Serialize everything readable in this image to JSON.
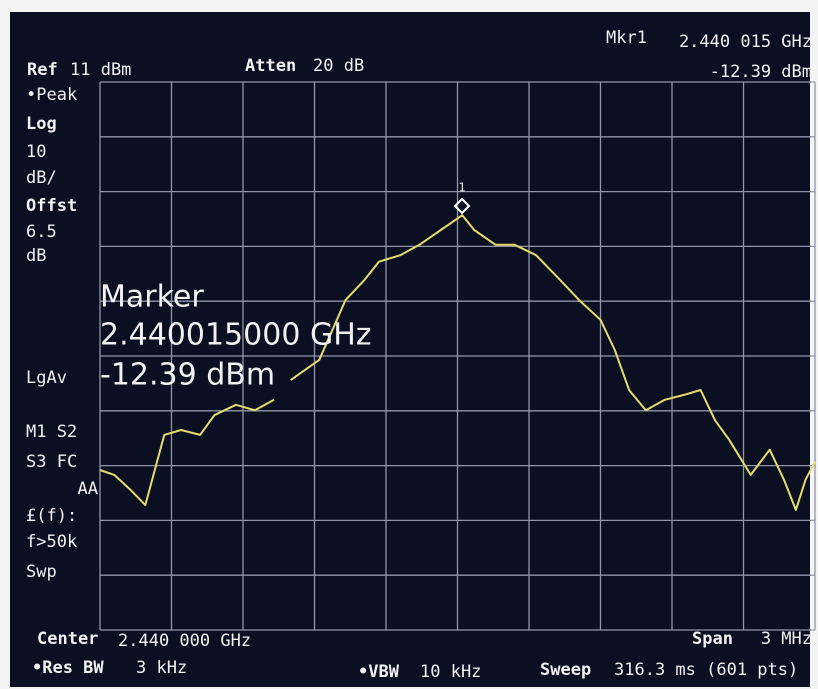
{
  "screen": {
    "mkr_title": "Mkr1",
    "mkr_freq": "2.440 015 GHz",
    "mkr_level": "-12.39 dBm",
    "ref": "Ref",
    "ref_value": "11 dBm",
    "atten": "Atten",
    "atten_value": "20 dB",
    "side": [
      "•Peak",
      "Log",
      "10",
      "dB/",
      "Offst",
      "6.5",
      "dB",
      "LgAv",
      "M1 S2",
      "S3 FC",
      "AA",
      "£(f):",
      "f>50k",
      "Swp"
    ],
    "marker_box": [
      "Marker",
      "2.440015000 GHz",
      "-12.39 dBm"
    ],
    "marker_number": "1",
    "center": "Center",
    "center_value": "2.440 000 GHz",
    "span": "Span",
    "span_value": "3 MHz",
    "rbw": "•Res BW",
    "rbw_value": "3 kHz",
    "vbw": "•VBW",
    "vbw_value": "10 kHz",
    "sweep": "Sweep",
    "sweep_value": "316.3 ms (601 pts)"
  },
  "chart_data": {
    "type": "line",
    "x": [
      2.4385,
      2.43856,
      2.43863,
      2.43869,
      2.43873,
      2.43877,
      2.43884,
      2.43892,
      2.43898,
      2.43907,
      2.43915,
      2.43923,
      null,
      2.4393,
      2.43942,
      2.43953,
      2.43961,
      2.43967,
      2.43976,
      2.43984,
      2.43993,
      2.44002,
      2.44007,
      2.44016,
      2.44024,
      2.44033,
      2.44043,
      2.44051,
      2.4406,
      2.44066,
      2.44072,
      2.44079,
      2.44087,
      2.44095,
      2.44102,
      2.44108,
      2.44114,
      2.44123,
      2.44131,
      2.44137,
      2.44142,
      2.44146,
      2.4415
    ],
    "values": [
      -59.8,
      -60.7,
      -63.5,
      -66.2,
      -59.8,
      -53.4,
      -52.5,
      -53.4,
      -49.8,
      -47.9,
      -48.9,
      -47.0,
      null,
      -43.4,
      -39.7,
      -28.8,
      -25.1,
      -21.8,
      -20.6,
      -18.7,
      -16.0,
      -13.3,
      -16.0,
      -18.7,
      -18.7,
      -20.6,
      -25.1,
      -28.8,
      -32.4,
      -37.9,
      -45.2,
      -48.9,
      -47.0,
      -46.1,
      -45.2,
      -50.7,
      -54.3,
      -60.7,
      -56.1,
      -61.6,
      -67.1,
      -61.6,
      -58.3
    ],
    "xlim": [
      2.4385,
      2.4415
    ],
    "ylim": [
      -89,
      11
    ],
    "color": "#e6dc6a"
  }
}
